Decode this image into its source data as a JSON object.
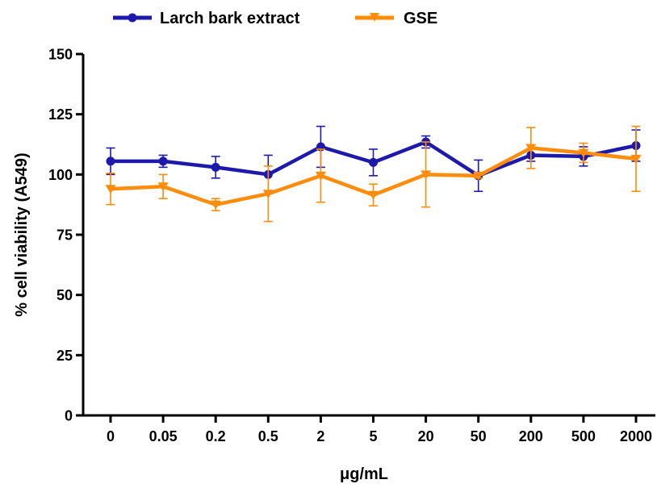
{
  "chart_data": {
    "type": "line",
    "title": "",
    "xlabel": "μg/mL",
    "ylabel": "% cell viability (A549)",
    "x_scale": "categorical",
    "categories": [
      "0",
      "0.05",
      "0.2",
      "0.5",
      "2",
      "5",
      "20",
      "50",
      "200",
      "500",
      "2000"
    ],
    "ylim": [
      0,
      150
    ],
    "yticks": [
      "0",
      "25",
      "50",
      "75",
      "100",
      "125",
      "150"
    ],
    "grid": false,
    "legend_position": "top",
    "series": [
      {
        "name": "Larch bark extract",
        "color": "#1d1aab",
        "marker": "circle",
        "values": [
          105.5,
          105.5,
          103,
          100,
          111.5,
          105,
          113.5,
          99.5,
          108,
          107.5,
          112
        ],
        "error": [
          5.5,
          2.5,
          4.5,
          8,
          8.5,
          5.5,
          2.5,
          6.5,
          2.5,
          4,
          6.5
        ]
      },
      {
        "name": "GSE",
        "color": "#ff8c0a",
        "marker": "triangle-down",
        "values": [
          94,
          95,
          87.5,
          92,
          99.5,
          91.5,
          100,
          99.5,
          111,
          109,
          106.5
        ],
        "error": [
          6.5,
          5,
          2.5,
          11.5,
          11,
          4.5,
          13.5,
          1,
          8.5,
          4,
          13.5
        ]
      }
    ]
  }
}
